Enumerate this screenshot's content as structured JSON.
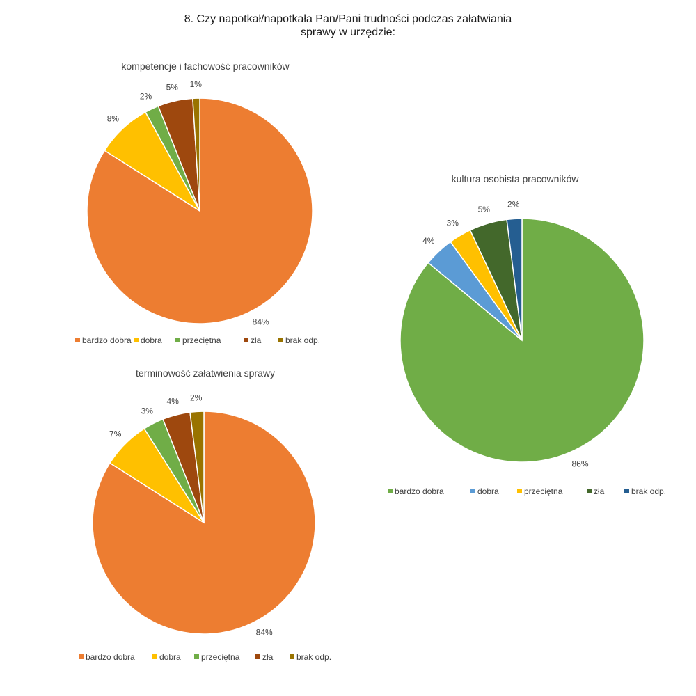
{
  "title_line1": "8. Czy napotkał/napotkała Pan/Pani trudności podczas załatwiania",
  "title_line2": "sprawy w urzędzie:",
  "chart_data": [
    {
      "type": "pie",
      "title": "kompetencje i fachowość pracowników",
      "categories": [
        "bardzo dobra",
        "dobra",
        "przeciętna",
        "zła",
        "brak odp."
      ],
      "values": [
        84,
        8,
        2,
        5,
        1
      ],
      "labels": [
        "84%",
        "8%",
        "2%",
        "5%",
        "1%"
      ],
      "colors": [
        "#ED7D31",
        "#FFC000",
        "#70AD47",
        "#9E480E",
        "#997300"
      ],
      "legend": "bottom"
    },
    {
      "type": "pie",
      "title": "kultura osobista pracowników",
      "categories": [
        "bardzo dobra",
        "dobra",
        "przeciętna",
        "zła",
        "brak odp."
      ],
      "values": [
        86,
        4,
        3,
        5,
        2
      ],
      "labels": [
        "86%",
        "4%",
        "3%",
        "5%",
        "2%"
      ],
      "colors": [
        "#70AD47",
        "#5B9BD5",
        "#FFC000",
        "#43682B",
        "#255E91"
      ],
      "legend": "bottom"
    },
    {
      "type": "pie",
      "title": "terminowość załatwienia sprawy",
      "categories": [
        "bardzo dobra",
        "dobra",
        "przeciętna",
        "zła",
        "brak odp."
      ],
      "values": [
        84,
        7,
        3,
        4,
        2
      ],
      "labels": [
        "84%",
        "7%",
        "3%",
        "4%",
        "2%"
      ],
      "colors": [
        "#ED7D31",
        "#FFC000",
        "#70AD47",
        "#9E480E",
        "#997300"
      ],
      "legend": "bottom"
    }
  ]
}
